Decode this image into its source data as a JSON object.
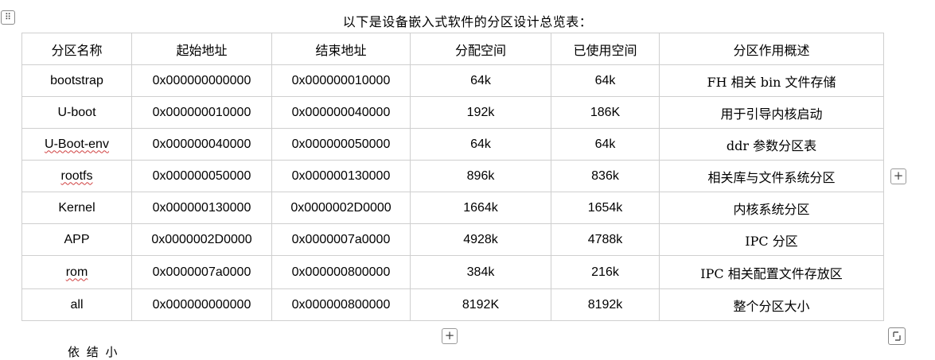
{
  "table_handle_icon": "move-handle-icon",
  "caption": "以下是设备嵌入式软件的分区设计总览表：",
  "table": {
    "headers": [
      "分区名称",
      "起始地址",
      "结束地址",
      "分配空间",
      "已使用空间",
      "分区作用概述"
    ],
    "rows": [
      [
        "bootstrap",
        "0x000000000000",
        "0x000000010000",
        "64k",
        "64k",
        "FH 相关 bin 文件存储"
      ],
      [
        "U-boot",
        "0x000000010000",
        "0x000000040000",
        "192k",
        "186K",
        "用于引导内核启动"
      ],
      [
        "U-Boot-env",
        "0x000000040000",
        "0x000000050000",
        "64k",
        "64k",
        "ddr 参数分区表"
      ],
      [
        "rootfs",
        "0x000000050000",
        "0x000000130000",
        "896k",
        "836k",
        "相关库与文件系统分区"
      ],
      [
        "Kernel",
        "0x000000130000",
        "0x0000002D0000",
        "1664k",
        "1654k",
        "内核系统分区"
      ],
      [
        "APP",
        "0x0000002D0000",
        "0x0000007a0000",
        "4928k",
        "4788k",
        "IPC 分区"
      ],
      [
        "rom",
        "0x0000007a0000",
        "0x000000800000",
        "384k",
        "216k",
        "IPC 相关配置文件存放区"
      ],
      [
        "all",
        "0x000000000000",
        "0x000000800000",
        "8192K",
        "8192k",
        "整个分区大小"
      ]
    ]
  },
  "add_column_label": "+",
  "add_row_label": "+",
  "resize_icon": "resize-corner-icon",
  "partial_text": "依   结 小"
}
